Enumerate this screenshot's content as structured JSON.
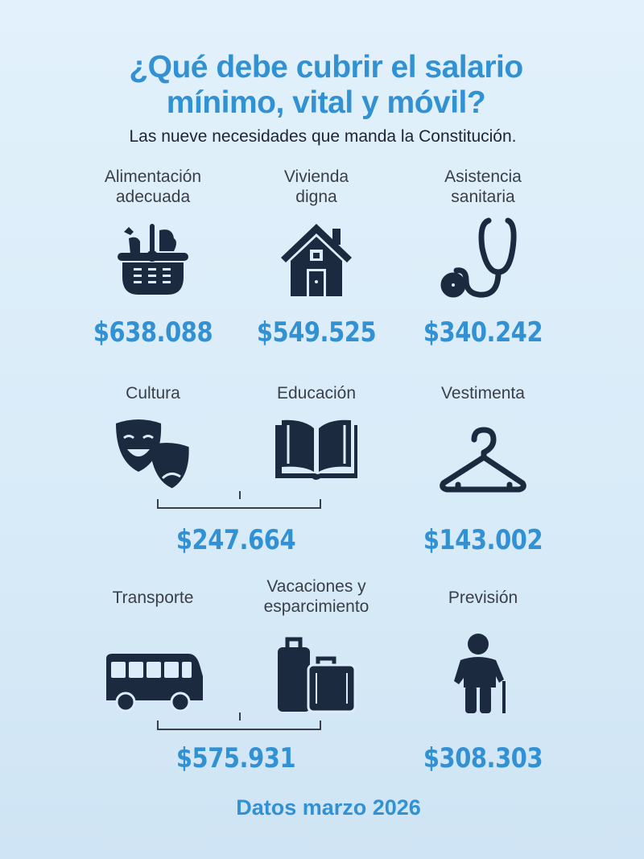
{
  "header": {
    "title_line1": "¿Qué debe cubrir el salario",
    "title_line2": "mínimo, vital y móvil?",
    "subtitle": "Las nueve necesidades que manda la Constitución."
  },
  "items": [
    {
      "label_line1": "Alimentación",
      "label_line2": "adecuada",
      "icon": "food-basket-icon",
      "value": "$638.088"
    },
    {
      "label_line1": "Vivienda",
      "label_line2": "digna",
      "icon": "house-icon",
      "value": "$549.525"
    },
    {
      "label_line1": "Asistencia",
      "label_line2": "sanitaria",
      "icon": "stethoscope-icon",
      "value": "$340.242"
    },
    {
      "label_line1": "Cultura",
      "icon": "theater-masks-icon"
    },
    {
      "label_line1": "Educación",
      "icon": "open-book-icon"
    },
    {
      "label_line1": "Vestimenta",
      "icon": "hanger-icon",
      "value": "$143.002"
    },
    {
      "label_line1": "Transporte",
      "icon": "bus-icon"
    },
    {
      "label_line1": "Vacaciones y",
      "label_line2": "esparcimiento",
      "icon": "luggage-icon"
    },
    {
      "label_line1": "Previsión",
      "icon": "elderly-person-icon",
      "value": "$308.303"
    }
  ],
  "combined": {
    "cultura_educacion": "$247.664",
    "transporte_vacaciones": "$575.931"
  },
  "footer": "Datos marzo 2026",
  "colors": {
    "accent": "#3191d2",
    "icon": "#1c2a40"
  }
}
